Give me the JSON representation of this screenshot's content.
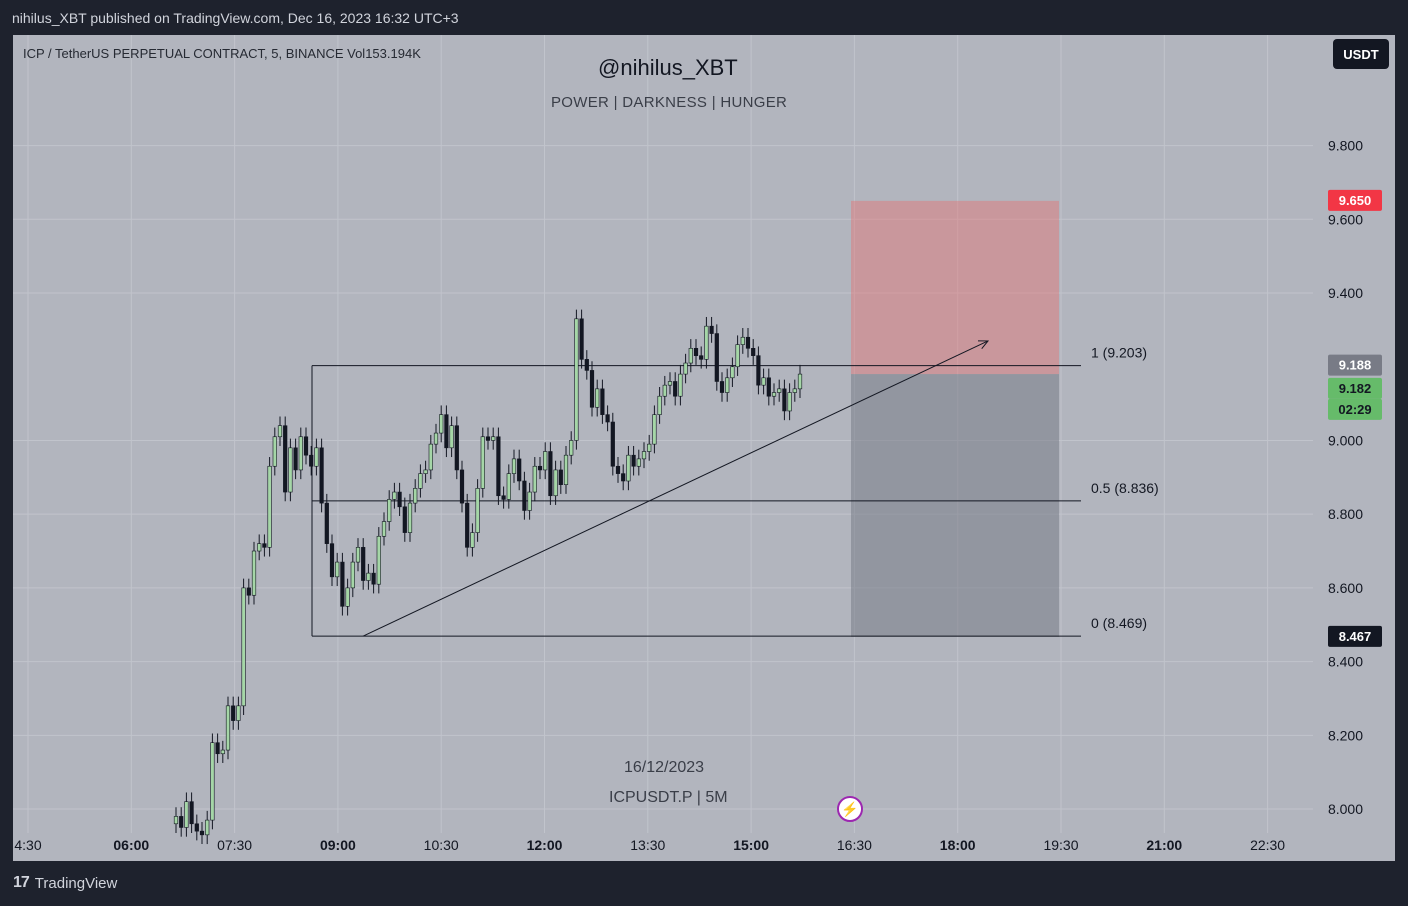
{
  "header": {
    "publisher": "nihilus_XBT published on TradingView.com, Dec 16, 2023 16:32 UTC+3"
  },
  "symbol_info": "ICP / TetherUS PERPETUAL CONTRACT, 5, BINANCE  Vol153.194K",
  "watermark": {
    "title": "@nihilus_XBT",
    "subtitle": "POWER  |  DARKNESS  |  HUNGER"
  },
  "currency_button": "USDT",
  "date_label": "16/12/2023",
  "ticker_label": "ICPUSDT.P  |  5M",
  "brand": "TradingView",
  "colors": {
    "up": "#a5d6a7",
    "down": "#131722",
    "target_zone": "#e57373",
    "stop_zone": "#787b86",
    "badge_red": "#f23645",
    "badge_green": "#66bb6a"
  },
  "price_badges": [
    {
      "text": "9.650",
      "kind": "red"
    },
    {
      "text": "9.188",
      "kind": "grey"
    },
    {
      "text": "9.182",
      "kind": "green"
    },
    {
      "text": "02:29",
      "kind": "green"
    },
    {
      "text": "8.467",
      "kind": "dark"
    }
  ],
  "fib_labels": [
    "1 (9.203)",
    "0.5 (8.836)",
    "0 (8.469)"
  ],
  "chart_data": {
    "type": "candlestick",
    "y_ticks": [
      "9.800",
      "9.600",
      "9.400",
      "9.000",
      "8.800",
      "8.600",
      "8.400",
      "8.200",
      "8.000"
    ],
    "y_tick_values": [
      9.8,
      9.6,
      9.4,
      9.0,
      8.8,
      8.6,
      8.4,
      8.2,
      8.0
    ],
    "ylim": [
      7.935,
      10.1
    ],
    "x_ticks": [
      {
        "label": "4:30",
        "bold": false
      },
      {
        "label": "06:00",
        "bold": true
      },
      {
        "label": "07:30",
        "bold": false
      },
      {
        "label": "09:00",
        "bold": true
      },
      {
        "label": "10:30",
        "bold": false
      },
      {
        "label": "12:00",
        "bold": true
      },
      {
        "label": "13:30",
        "bold": false
      },
      {
        "label": "15:00",
        "bold": true
      },
      {
        "label": "16:30",
        "bold": false
      },
      {
        "label": "18:00",
        "bold": true
      },
      {
        "label": "19:30",
        "bold": false
      },
      {
        "label": "21:00",
        "bold": true
      },
      {
        "label": "22:30",
        "bold": false
      }
    ],
    "candles_closes": [
      7.98,
      7.95,
      8.02,
      7.96,
      7.94,
      7.93,
      7.97,
      8.18,
      8.15,
      8.16,
      8.28,
      8.24,
      8.28,
      8.6,
      8.58,
      8.7,
      8.72,
      8.71,
      8.93,
      9.01,
      9.04,
      8.86,
      8.98,
      8.92,
      9.01,
      8.96,
      8.93,
      8.98,
      8.83,
      8.72,
      8.63,
      8.67,
      8.55,
      8.6,
      8.67,
      8.71,
      8.62,
      8.64,
      8.61,
      8.74,
      8.78,
      8.84,
      8.86,
      8.82,
      8.75,
      8.83,
      8.87,
      8.91,
      8.92,
      8.99,
      9.02,
      9.07,
      8.98,
      9.04,
      8.92,
      8.83,
      8.71,
      8.75,
      8.87,
      9.01,
      9.0,
      9.01,
      8.85,
      8.84,
      8.91,
      8.95,
      8.89,
      8.81,
      8.86,
      8.93,
      8.92,
      8.97,
      8.85,
      8.92,
      8.88,
      8.96,
      9.0,
      9.33,
      9.22,
      9.19,
      9.09,
      9.14,
      9.07,
      9.05,
      8.93,
      8.91,
      8.89,
      8.96,
      8.93,
      8.95,
      8.97,
      8.99,
      9.07,
      9.12,
      9.15,
      9.16,
      9.12,
      9.18,
      9.21,
      9.25,
      9.23,
      9.22,
      9.31,
      9.29,
      9.16,
      9.13,
      9.17,
      9.2,
      9.26,
      9.28,
      9.25,
      9.23,
      9.15,
      9.17,
      9.12,
      9.13,
      9.14,
      9.08,
      9.13,
      9.14,
      9.18
    ],
    "first_open": 7.96,
    "fib_levels": [
      9.203,
      8.836,
      8.469
    ],
    "position": {
      "entry": 9.18,
      "target": 9.65,
      "stop": 8.467
    },
    "trendline": {
      "from": 8.469,
      "to": 9.27
    }
  }
}
